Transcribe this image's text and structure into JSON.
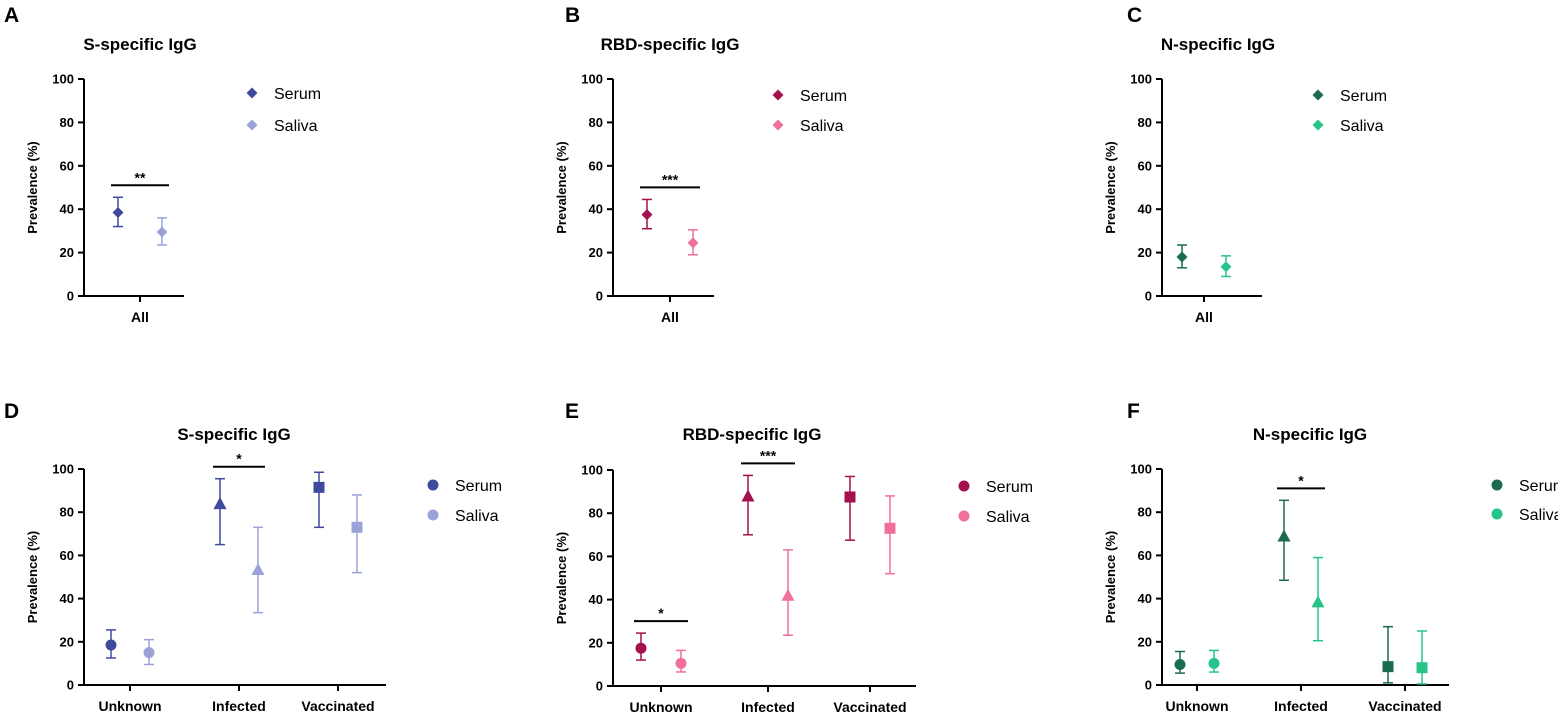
{
  "chart_data": [
    {
      "panel": "A",
      "type": "scatter",
      "title": "S-specific IgG",
      "ylabel": "Prevalence (%)",
      "ylim": [
        0,
        100
      ],
      "yticks": [
        "0",
        "20",
        "40",
        "60",
        "80",
        "100"
      ],
      "categories": [
        "All"
      ],
      "series": [
        {
          "name": "Serum",
          "color": "#3f4a9c",
          "points": [
            {
              "category": "All",
              "value": 38.5,
              "low": 32,
              "high": 45.5,
              "marker": "diamond"
            }
          ]
        },
        {
          "name": "Saliva",
          "color": "#9aa3d8",
          "points": [
            {
              "category": "All",
              "value": 29.5,
              "low": 23.5,
              "high": 36,
              "marker": "diamond"
            }
          ]
        }
      ],
      "significance": [
        {
          "category": "All",
          "label": "**"
        }
      ]
    },
    {
      "panel": "B",
      "type": "scatter",
      "title": "RBD-specific IgG",
      "ylabel": "Prevalence (%)",
      "ylim": [
        0,
        100
      ],
      "yticks": [
        "0",
        "20",
        "40",
        "60",
        "80",
        "100"
      ],
      "categories": [
        "All"
      ],
      "series": [
        {
          "name": "Serum",
          "color": "#a3124f",
          "points": [
            {
              "category": "All",
              "value": 37.5,
              "low": 31,
              "high": 44.5,
              "marker": "diamond"
            }
          ]
        },
        {
          "name": "Saliva",
          "color": "#f0709b",
          "points": [
            {
              "category": "All",
              "value": 24.5,
              "low": 19,
              "high": 30.5,
              "marker": "diamond"
            }
          ]
        }
      ],
      "significance": [
        {
          "category": "All",
          "label": "***"
        }
      ]
    },
    {
      "panel": "C",
      "type": "scatter",
      "title": "N-specific IgG",
      "ylabel": "Prevalence (%)",
      "ylim": [
        0,
        100
      ],
      "yticks": [
        "0",
        "20",
        "40",
        "60",
        "80",
        "100"
      ],
      "categories": [
        "All"
      ],
      "series": [
        {
          "name": "Serum",
          "color": "#1a6b4f",
          "points": [
            {
              "category": "All",
              "value": 18,
              "low": 13,
              "high": 23.5,
              "marker": "diamond"
            }
          ]
        },
        {
          "name": "Saliva",
          "color": "#27c48a",
          "points": [
            {
              "category": "All",
              "value": 13.5,
              "low": 9,
              "high": 18.5,
              "marker": "diamond"
            }
          ]
        }
      ],
      "significance": []
    },
    {
      "panel": "D",
      "type": "scatter",
      "title": "S-specific IgG",
      "ylabel": "Prevalence (%)",
      "ylim": [
        0,
        100
      ],
      "yticks": [
        "0",
        "20",
        "40",
        "60",
        "80",
        "100"
      ],
      "categories": [
        "Unknown",
        "Infected",
        "Vaccinated"
      ],
      "series": [
        {
          "name": "Serum",
          "color": "#3f4a9c",
          "points": [
            {
              "category": "Unknown",
              "value": 18.5,
              "low": 12.5,
              "high": 25.5,
              "marker": "circle"
            },
            {
              "category": "Infected",
              "value": 84,
              "low": 65,
              "high": 95.5,
              "marker": "triangle"
            },
            {
              "category": "Vaccinated",
              "value": 91.5,
              "low": 73,
              "high": 98.5,
              "marker": "square"
            }
          ]
        },
        {
          "name": "Saliva",
          "color": "#9aa3d8",
          "points": [
            {
              "category": "Unknown",
              "value": 15,
              "low": 9.5,
              "high": 21,
              "marker": "circle"
            },
            {
              "category": "Infected",
              "value": 53.5,
              "low": 33.5,
              "high": 73,
              "marker": "triangle"
            },
            {
              "category": "Vaccinated",
              "value": 73,
              "low": 52,
              "high": 88,
              "marker": "square"
            }
          ]
        }
      ],
      "significance": [
        {
          "category": "Infected",
          "label": "*"
        }
      ]
    },
    {
      "panel": "E",
      "type": "scatter",
      "title": "RBD-specific IgG",
      "ylabel": "Prevalence (%)",
      "ylim": [
        0,
        100
      ],
      "yticks": [
        "0",
        "20",
        "40",
        "60",
        "80",
        "100"
      ],
      "categories": [
        "Unknown",
        "Infected",
        "Vaccinated"
      ],
      "series": [
        {
          "name": "Serum",
          "color": "#a3124f",
          "points": [
            {
              "category": "Unknown",
              "value": 17.5,
              "low": 12,
              "high": 24.5,
              "marker": "circle"
            },
            {
              "category": "Infected",
              "value": 88,
              "low": 70,
              "high": 97.5,
              "marker": "triangle"
            },
            {
              "category": "Vaccinated",
              "value": 87.5,
              "low": 67.5,
              "high": 97,
              "marker": "square"
            }
          ]
        },
        {
          "name": "Saliva",
          "color": "#f0709b",
          "points": [
            {
              "category": "Unknown",
              "value": 10.5,
              "low": 6.5,
              "high": 16.5,
              "marker": "circle"
            },
            {
              "category": "Infected",
              "value": 42,
              "low": 23.5,
              "high": 63,
              "marker": "triangle"
            },
            {
              "category": "Vaccinated",
              "value": 73,
              "low": 52,
              "high": 88,
              "marker": "square"
            }
          ]
        }
      ],
      "significance": [
        {
          "category": "Unknown",
          "label": "*"
        },
        {
          "category": "Infected",
          "label": "***"
        }
      ]
    },
    {
      "panel": "F",
      "type": "scatter",
      "title": "N-specific IgG",
      "ylabel": "Prevalence (%)",
      "ylim": [
        0,
        100
      ],
      "yticks": [
        "0",
        "20",
        "40",
        "60",
        "80",
        "100"
      ],
      "categories": [
        "Unknown",
        "Infected",
        "Vaccinated"
      ],
      "series": [
        {
          "name": "Serum",
          "color": "#1a6b4f",
          "points": [
            {
              "category": "Unknown",
              "value": 9.5,
              "low": 5.5,
              "high": 15.5,
              "marker": "circle"
            },
            {
              "category": "Infected",
              "value": 69,
              "low": 48.5,
              "high": 85.5,
              "marker": "triangle"
            },
            {
              "category": "Vaccinated",
              "value": 8.5,
              "low": 1,
              "high": 27,
              "marker": "square"
            }
          ]
        },
        {
          "name": "Saliva",
          "color": "#27c48a",
          "points": [
            {
              "category": "Unknown",
              "value": 10,
              "low": 6,
              "high": 16,
              "marker": "circle"
            },
            {
              "category": "Infected",
              "value": 38.5,
              "low": 20.5,
              "high": 59,
              "marker": "triangle"
            },
            {
              "category": "Vaccinated",
              "value": 8,
              "low": 0.5,
              "high": 25,
              "marker": "square"
            }
          ]
        }
      ],
      "significance": [
        {
          "category": "Infected",
          "label": "*"
        }
      ]
    }
  ]
}
